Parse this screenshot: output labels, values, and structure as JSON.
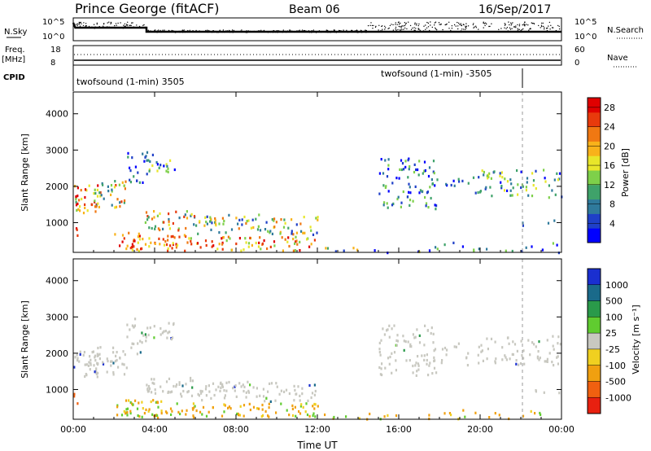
{
  "header": {
    "station": "Prince George (fitACF)",
    "beam": "Beam 06",
    "date": "16/Sep/2017"
  },
  "summary": {
    "nsky_label": "N.Sky",
    "nsky_ticks": [
      "10^5",
      "10^0"
    ],
    "nsearch_label": "N.Search",
    "nsearch_ticks": [
      "10^5",
      "10^0"
    ],
    "freq_label_top": "Freq.",
    "freq_label_unit": "[MHz]",
    "freq_ticks": [
      "18",
      "8"
    ],
    "nave_label": "Nave",
    "nave_ticks": [
      "60",
      "0"
    ],
    "cpid_label": "CPID",
    "cpid_segments": [
      "twofsound (1-min) 3505",
      "twofsound (1-min) -3505"
    ]
  },
  "chart_data": [
    {
      "type": "heatmap",
      "name": "power",
      "ylabel": "Slant Range [km]",
      "xlabel": "",
      "x_ticks": [
        "00:00",
        "04:00",
        "08:00",
        "12:00",
        "16:00",
        "20:00",
        "00:00"
      ],
      "x_range_hours": [
        0,
        24
      ],
      "y_ticks": [
        1000,
        2000,
        3000,
        4000
      ],
      "ylim": [
        180,
        4600
      ],
      "colorbar": {
        "label": "Power [dB]",
        "ticks": [
          4,
          8,
          12,
          16,
          20,
          24,
          28
        ],
        "colors": [
          "#0000ff",
          "#1f40c8",
          "#2f7a9c",
          "#3fa26a",
          "#7ed04a",
          "#e8e62a",
          "#f8b21a",
          "#f07812",
          "#e83a0c",
          "#e00000"
        ]
      }
    },
    {
      "type": "heatmap",
      "name": "velocity",
      "ylabel": "Slant Range [km]",
      "xlabel": "Time UT",
      "x_ticks": [
        "00:00",
        "04:00",
        "08:00",
        "12:00",
        "16:00",
        "20:00",
        "00:00"
      ],
      "x_range_hours": [
        0,
        24
      ],
      "y_ticks": [
        1000,
        2000,
        3000,
        4000
      ],
      "ylim": [
        180,
        4600
      ],
      "colorbar": {
        "label": "Velocity [m s⁻¹]",
        "ticks": [
          "1000",
          "500",
          "100",
          "25",
          "-25",
          "-100",
          "-500",
          "-1000"
        ],
        "colors": [
          "#1a2fd0",
          "#1a6a8a",
          "#2a9a4a",
          "#60cc30",
          "#c8c8c0",
          "#f0d020",
          "#f0a010",
          "#f06010",
          "#e82010"
        ]
      }
    }
  ],
  "colors": {
    "ground_scatter": "#c8c8c0"
  }
}
